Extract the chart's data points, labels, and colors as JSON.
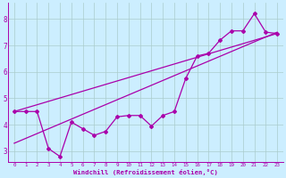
{
  "xlabel": "Windchill (Refroidissement éolien,°C)",
  "bg_color": "#cceeff",
  "grid_color": "#aacccc",
  "line_color": "#aa00aa",
  "xlim": [
    -0.5,
    23.5
  ],
  "ylim": [
    2.6,
    8.6
  ],
  "yticks": [
    3,
    4,
    5,
    6,
    7,
    8
  ],
  "xticks": [
    0,
    1,
    2,
    3,
    4,
    5,
    6,
    7,
    8,
    9,
    10,
    11,
    12,
    13,
    14,
    15,
    16,
    17,
    18,
    19,
    20,
    21,
    22,
    23
  ],
  "data_x": [
    0,
    1,
    2,
    3,
    4,
    5,
    6,
    7,
    8,
    9,
    10,
    11,
    12,
    13,
    14,
    15,
    16,
    17,
    18,
    19,
    20,
    21,
    22,
    23
  ],
  "data_y": [
    4.5,
    4.5,
    4.5,
    3.1,
    2.8,
    4.1,
    3.85,
    3.6,
    3.75,
    4.3,
    4.35,
    4.35,
    3.95,
    4.35,
    4.5,
    5.75,
    6.6,
    6.7,
    7.2,
    7.55,
    7.55,
    8.2,
    7.5,
    7.45
  ],
  "trend1_x": [
    0,
    23
  ],
  "trend1_y": [
    3.3,
    7.5
  ],
  "trend2_x": [
    0,
    23
  ],
  "trend2_y": [
    4.5,
    7.45
  ],
  "marker": "D",
  "marker_size": 2.0,
  "line_width": 0.9
}
